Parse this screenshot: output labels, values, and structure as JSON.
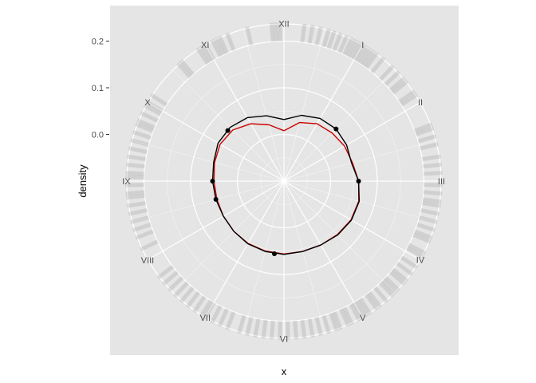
{
  "chart_data": {
    "type": "polar-density",
    "xlabel": "x",
    "ylabel": "density",
    "hour_labels": [
      "XII",
      "I",
      "II",
      "III",
      "IV",
      "V",
      "VI",
      "VII",
      "VIII",
      "IX",
      "X",
      "XI"
    ],
    "y_ticks": [
      0.0,
      0.1,
      0.2
    ],
    "y_tick_labels": [
      "0.0",
      "0.1",
      "0.2"
    ],
    "ylim": [
      -0.1,
      0.28
    ],
    "rug_band_radius": [
      0.2,
      0.24
    ],
    "rug_positions": [
      0.25,
      0.35,
      0.45,
      0.55,
      0.62,
      0.7,
      0.78,
      0.85,
      0.9,
      0.95,
      1.0,
      1.05,
      1.1,
      1.15,
      1.2,
      1.3,
      1.45,
      1.55,
      1.65,
      1.7,
      1.85,
      1.9,
      2.3,
      2.35,
      2.45,
      2.55,
      2.7,
      2.8,
      2.9,
      3.05,
      3.15,
      3.25,
      3.3,
      3.4,
      3.5,
      3.6,
      3.7,
      3.75,
      3.9,
      3.95,
      4.1,
      4.2,
      4.3,
      4.35,
      4.45,
      4.5,
      4.55,
      4.65,
      4.75,
      4.8,
      4.9,
      4.95,
      5.0,
      5.05,
      5.15,
      5.2,
      5.3,
      5.35,
      5.45,
      5.55,
      5.65,
      5.75,
      5.85,
      5.95,
      6.05,
      6.15,
      6.25,
      6.35,
      6.45,
      6.55,
      6.7,
      6.8,
      6.9,
      7.0,
      7.05,
      7.15,
      7.25,
      7.35,
      7.45,
      7.55,
      7.65,
      7.75,
      8.15,
      8.3,
      8.4,
      8.5,
      8.6,
      8.7,
      8.8,
      8.85,
      8.95,
      9.05,
      9.1,
      9.2,
      9.3,
      9.4,
      9.5,
      9.6,
      9.7,
      9.75,
      9.85,
      9.95,
      10.0,
      10.1,
      10.6,
      10.65,
      10.9,
      10.95,
      11.0,
      11.1,
      11.15,
      11.2,
      11.3,
      11.55,
      11.85,
      11.9,
      11.95
    ],
    "series": [
      {
        "color": "#000000",
        "theta": [
          0,
          0.5,
          1,
          1.5,
          2,
          2.5,
          3,
          3.5,
          4,
          4.5,
          5,
          5.5,
          6,
          6.5,
          7,
          7.5,
          8,
          8.5,
          9,
          9.5,
          10,
          10.5,
          11,
          11.5,
          12
        ],
        "density": [
          0.032,
          0.046,
          0.055,
          0.058,
          0.055,
          0.05,
          0.06,
          0.067,
          0.067,
          0.063,
          0.058,
          0.056,
          0.057,
          0.056,
          0.055,
          0.052,
          0.05,
          0.051,
          0.053,
          0.056,
          0.063,
          0.063,
          0.057,
          0.045,
          0.032
        ],
        "points_theta": [
          1.5,
          3.0,
          6.25,
          8.5,
          9.0,
          10.4
        ],
        "points_density": [
          0.058,
          0.06,
          0.057,
          0.051,
          0.053,
          0.062
        ]
      },
      {
        "color": "#cc0000",
        "theta": [
          0,
          0.5,
          1,
          1.5,
          2,
          2.5,
          3,
          3.5,
          4,
          4.5,
          5,
          5.5,
          6,
          6.5,
          7,
          7.5,
          8,
          8.5,
          9,
          9.5,
          10,
          10.5,
          11,
          11.5,
          12
        ],
        "density": [
          0.008,
          0.03,
          0.042,
          0.046,
          0.05,
          0.052,
          0.06,
          0.066,
          0.066,
          0.062,
          0.058,
          0.056,
          0.056,
          0.055,
          0.054,
          0.052,
          0.05,
          0.049,
          0.05,
          0.054,
          0.058,
          0.055,
          0.042,
          0.025,
          0.008
        ]
      }
    ],
    "colors": {
      "panel": "#e5e5e5",
      "grid": "#ffffff",
      "rug": "#000000",
      "line1": "#000000",
      "line2": "#cc0000"
    }
  }
}
